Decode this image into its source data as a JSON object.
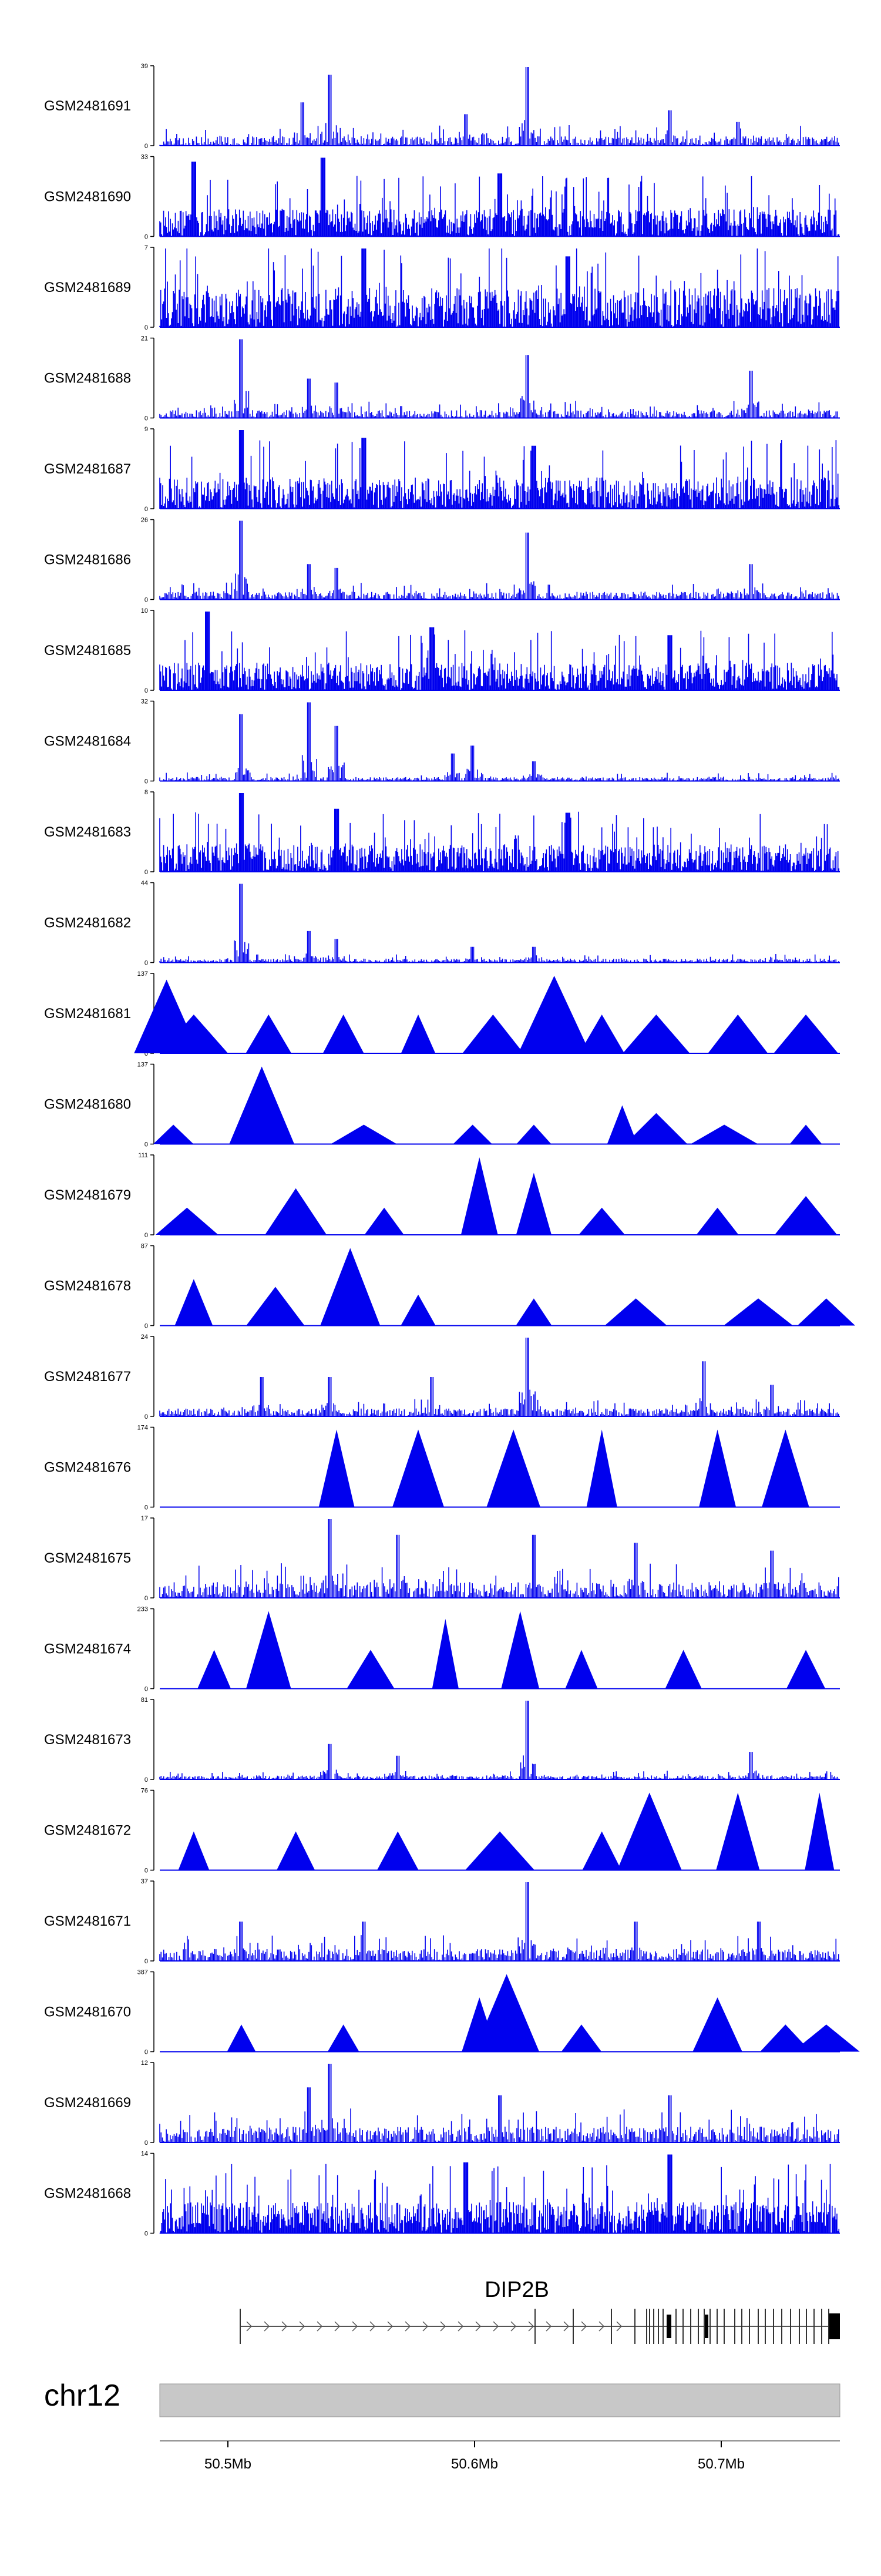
{
  "tracks": [
    {
      "id": "GSM2481691",
      "max": "39",
      "type": "bar",
      "peaks": [
        [
          0.21,
          0.55
        ],
        [
          0.25,
          0.9
        ],
        [
          0.45,
          0.4
        ],
        [
          0.54,
          1.0
        ],
        [
          0.75,
          0.45
        ],
        [
          0.85,
          0.3
        ]
      ],
      "base": 0.12
    },
    {
      "id": "GSM2481690",
      "max": "33",
      "type": "dense",
      "base": 0.35,
      "peaks": [
        [
          0.05,
          0.95
        ],
        [
          0.24,
          1.0
        ],
        [
          0.5,
          0.8
        ]
      ]
    },
    {
      "id": "GSM2481689",
      "max": "7",
      "type": "dense",
      "base": 0.5,
      "peaks": [
        [
          0.3,
          1.0
        ],
        [
          0.6,
          0.9
        ]
      ]
    },
    {
      "id": "GSM2481688",
      "max": "21",
      "type": "bar",
      "base": 0.1,
      "peaks": [
        [
          0.12,
          1.0
        ],
        [
          0.22,
          0.5
        ],
        [
          0.26,
          0.45
        ],
        [
          0.54,
          0.8
        ],
        [
          0.87,
          0.6
        ]
      ]
    },
    {
      "id": "GSM2481687",
      "max": "9",
      "type": "dense",
      "base": 0.4,
      "peaks": [
        [
          0.12,
          1.0
        ],
        [
          0.3,
          0.9
        ],
        [
          0.55,
          0.8
        ]
      ]
    },
    {
      "id": "GSM2481686",
      "max": "26",
      "type": "bar",
      "base": 0.1,
      "peaks": [
        [
          0.12,
          1.0
        ],
        [
          0.22,
          0.45
        ],
        [
          0.26,
          0.4
        ],
        [
          0.54,
          0.85
        ],
        [
          0.87,
          0.45
        ]
      ]
    },
    {
      "id": "GSM2481685",
      "max": "10",
      "type": "dense",
      "base": 0.35,
      "peaks": [
        [
          0.07,
          1.0
        ],
        [
          0.4,
          0.8
        ],
        [
          0.75,
          0.7
        ]
      ]
    },
    {
      "id": "GSM2481684",
      "max": "32",
      "type": "bar",
      "base": 0.05,
      "peaks": [
        [
          0.12,
          0.85
        ],
        [
          0.22,
          1.0
        ],
        [
          0.26,
          0.7
        ],
        [
          0.43,
          0.35
        ],
        [
          0.46,
          0.45
        ],
        [
          0.55,
          0.25
        ]
      ]
    },
    {
      "id": "GSM2481683",
      "max": "8",
      "type": "dense",
      "base": 0.35,
      "peaks": [
        [
          0.12,
          1.0
        ],
        [
          0.26,
          0.8
        ],
        [
          0.6,
          0.75
        ]
      ]
    },
    {
      "id": "GSM2481682",
      "max": "44",
      "type": "bar",
      "base": 0.05,
      "peaks": [
        [
          0.12,
          1.0
        ],
        [
          0.22,
          0.4
        ],
        [
          0.26,
          0.3
        ],
        [
          0.46,
          0.2
        ],
        [
          0.55,
          0.2
        ]
      ]
    },
    {
      "id": "GSM2481681",
      "max": "137",
      "type": "tri",
      "base": 0,
      "peaks": [
        [
          0.01,
          0.95
        ],
        [
          0.05,
          0.5
        ],
        [
          0.16,
          0.5
        ],
        [
          0.27,
          0.5
        ],
        [
          0.38,
          0.5
        ],
        [
          0.49,
          0.5
        ],
        [
          0.57,
          0.5
        ],
        [
          0.58,
          1.0
        ],
        [
          0.65,
          0.5
        ],
        [
          0.73,
          0.5
        ],
        [
          0.85,
          0.5
        ],
        [
          0.95,
          0.5
        ]
      ]
    },
    {
      "id": "GSM2481680",
      "max": "137",
      "type": "tri",
      "base": 0,
      "peaks": [
        [
          0.02,
          0.25
        ],
        [
          0.15,
          1.0
        ],
        [
          0.3,
          0.25
        ],
        [
          0.46,
          0.25
        ],
        [
          0.55,
          0.25
        ],
        [
          0.68,
          0.5
        ],
        [
          0.73,
          0.4
        ],
        [
          0.83,
          0.25
        ],
        [
          0.95,
          0.25
        ]
      ]
    },
    {
      "id": "GSM2481679",
      "max": "111",
      "type": "tri",
      "base": 0,
      "peaks": [
        [
          0.04,
          0.35
        ],
        [
          0.2,
          0.6
        ],
        [
          0.33,
          0.35
        ],
        [
          0.47,
          1.0
        ],
        [
          0.55,
          0.8
        ],
        [
          0.65,
          0.35
        ],
        [
          0.82,
          0.35
        ],
        [
          0.95,
          0.5
        ]
      ]
    },
    {
      "id": "GSM2481678",
      "max": "87",
      "type": "tri",
      "base": 0,
      "peaks": [
        [
          0.05,
          0.6
        ],
        [
          0.17,
          0.5
        ],
        [
          0.28,
          1.0
        ],
        [
          0.38,
          0.4
        ],
        [
          0.55,
          0.35
        ],
        [
          0.7,
          0.35
        ],
        [
          0.88,
          0.35
        ],
        [
          0.98,
          0.35
        ]
      ]
    },
    {
      "id": "GSM2481677",
      "max": "24",
      "type": "bar",
      "base": 0.1,
      "peaks": [
        [
          0.15,
          0.5
        ],
        [
          0.25,
          0.5
        ],
        [
          0.4,
          0.5
        ],
        [
          0.54,
          1.0
        ],
        [
          0.8,
          0.7
        ],
        [
          0.9,
          0.4
        ]
      ]
    },
    {
      "id": "GSM2481676",
      "max": "174",
      "type": "tri",
      "base": 0,
      "peaks": [
        [
          0.26,
          1.0
        ],
        [
          0.38,
          1.0
        ],
        [
          0.52,
          1.0
        ],
        [
          0.65,
          1.0
        ],
        [
          0.82,
          1.0
        ],
        [
          0.92,
          1.0
        ]
      ]
    },
    {
      "id": "GSM2481675",
      "max": "17",
      "type": "bar",
      "base": 0.2,
      "peaks": [
        [
          0.25,
          1.0
        ],
        [
          0.35,
          0.8
        ],
        [
          0.55,
          0.8
        ],
        [
          0.7,
          0.7
        ],
        [
          0.9,
          0.6
        ]
      ]
    },
    {
      "id": "GSM2481674",
      "max": "233",
      "type": "tri",
      "base": 0,
      "peaks": [
        [
          0.08,
          0.5
        ],
        [
          0.16,
          1.0
        ],
        [
          0.31,
          0.5
        ],
        [
          0.42,
          0.9
        ],
        [
          0.53,
          1.0
        ],
        [
          0.62,
          0.5
        ],
        [
          0.77,
          0.5
        ],
        [
          0.95,
          0.5
        ]
      ]
    },
    {
      "id": "GSM2481673",
      "max": "81",
      "type": "bar",
      "base": 0.05,
      "peaks": [
        [
          0.25,
          0.45
        ],
        [
          0.35,
          0.3
        ],
        [
          0.54,
          1.0
        ],
        [
          0.87,
          0.35
        ]
      ]
    },
    {
      "id": "GSM2481672",
      "max": "76",
      "type": "tri",
      "base": 0,
      "peaks": [
        [
          0.05,
          0.5
        ],
        [
          0.2,
          0.5
        ],
        [
          0.35,
          0.5
        ],
        [
          0.5,
          0.5
        ],
        [
          0.65,
          0.5
        ],
        [
          0.72,
          1.0
        ],
        [
          0.85,
          1.0
        ],
        [
          0.97,
          1.0
        ]
      ]
    },
    {
      "id": "GSM2481671",
      "max": "37",
      "type": "bar",
      "base": 0.15,
      "peaks": [
        [
          0.12,
          0.5
        ],
        [
          0.3,
          0.5
        ],
        [
          0.54,
          1.0
        ],
        [
          0.7,
          0.5
        ],
        [
          0.88,
          0.5
        ]
      ]
    },
    {
      "id": "GSM2481670",
      "max": "387",
      "type": "tri",
      "base": 0,
      "peaks": [
        [
          0.12,
          0.35
        ],
        [
          0.27,
          0.35
        ],
        [
          0.47,
          0.7
        ],
        [
          0.51,
          1.0
        ],
        [
          0.62,
          0.35
        ],
        [
          0.82,
          0.7
        ],
        [
          0.92,
          0.35
        ],
        [
          0.98,
          0.35
        ]
      ]
    },
    {
      "id": "GSM2481669",
      "max": "12",
      "type": "bar",
      "base": 0.2,
      "peaks": [
        [
          0.22,
          0.7
        ],
        [
          0.25,
          1.0
        ],
        [
          0.5,
          0.6
        ],
        [
          0.75,
          0.6
        ]
      ]
    },
    {
      "id": "GSM2481668",
      "max": "14",
      "type": "dense",
      "base": 0.4,
      "peaks": [
        [
          0.45,
          0.9
        ],
        [
          0.75,
          1.0
        ]
      ]
    }
  ],
  "gene": {
    "name": "DIP2B"
  },
  "chromosome": {
    "name": "chr12"
  },
  "axis": {
    "ticks": [
      "50.5Mb",
      "50.6Mb",
      "50.7Mb"
    ]
  },
  "colors": {
    "signal": "#0000ee",
    "axis": "#000000",
    "ideogram": "#c8c8c8"
  }
}
